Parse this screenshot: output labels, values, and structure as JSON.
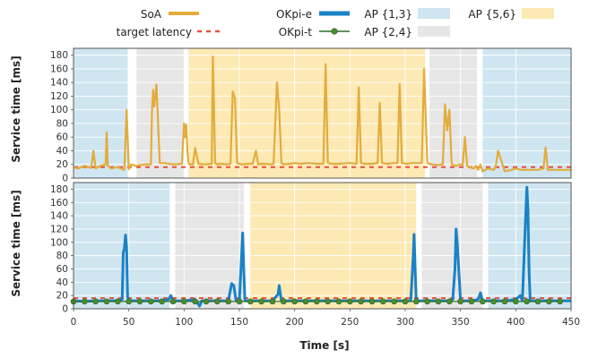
{
  "chart_data": {
    "type": "line",
    "xlabel": "Time [s]",
    "ylabel": "Service time [ms]",
    "xlim": [
      0,
      450
    ],
    "ylim": [
      0,
      190
    ],
    "xticks": [
      0,
      50,
      100,
      150,
      200,
      250,
      300,
      350,
      400,
      450
    ],
    "yticks": [
      0,
      20,
      40,
      60,
      80,
      100,
      120,
      140,
      160,
      180
    ],
    "grid": true,
    "legend_position": "top",
    "target_latency": 16,
    "legend": {
      "soa": "SoA",
      "okpi_e": "OKpi-e",
      "ap13": "AP {1,3}",
      "ap56": "AP {5,6}",
      "target": "target latency",
      "okpi_t": "OKpi-t",
      "ap24": "AP {2,4}"
    },
    "colors": {
      "soa": "#e3ac3c",
      "okpi_e": "#1a82c6",
      "okpi_t": "#2e6b2a",
      "okpi_t_marker": "#4f8a2d",
      "target": "#e8503a",
      "ap13": "#cfe6f1",
      "ap24": "#e6e6e6",
      "ap56": "#fde9b4"
    },
    "panels": [
      {
        "name": "SoA",
        "regions": [
          {
            "ap": "AP {1,3}",
            "from": 0,
            "to": 49
          },
          {
            "ap": "AP {2,4}",
            "from": 57,
            "to": 100
          },
          {
            "ap": "AP {5,6}",
            "from": 104,
            "to": 318
          },
          {
            "ap": "AP {2,4}",
            "from": 322,
            "to": 365
          },
          {
            "ap": "AP {1,3}",
            "from": 370,
            "to": 450
          }
        ],
        "series": [
          {
            "name": "SoA",
            "x": [
              0,
              4,
              10,
              16,
              18,
              20,
              24,
              29,
              30,
              31,
              34,
              40,
              46,
              48,
              50,
              52,
              56,
              60,
              66,
              70,
              71,
              72,
              73,
              74,
              75,
              76,
              78,
              82,
              90,
              98,
              100,
              101,
              102,
              103,
              104,
              105,
              108,
              110,
              113,
              118,
              125,
              126,
              127,
              128,
              130,
              133,
              138,
              142,
              144,
              146,
              148,
              152,
              158,
              162,
              165,
              167,
              170,
              174,
              178,
              181,
              184,
              186,
              188,
              190,
              196,
              200,
              206,
              212,
              220,
              226,
              228,
              230,
              234,
              240,
              250,
              256,
              258,
              260,
              264,
              270,
              275,
              277,
              279,
              284,
              290,
              293,
              295,
              297,
              302,
              306,
              310,
              313,
              315,
              317,
              320,
              324,
              330,
              334,
              336,
              338,
              340,
              342,
              346,
              350,
              352,
              354,
              356,
              358,
              362,
              364,
              366,
              368,
              370,
              375,
              380,
              382,
              384,
              390,
              396,
              400,
              405,
              410,
              420,
              425,
              427,
              429,
              440,
              450
            ],
            "y": [
              16,
              14,
              18,
              15,
              40,
              14,
              18,
              20,
              67,
              18,
              14,
              16,
              12,
              100,
              13,
              20,
              18,
              19,
              20,
              20,
              100,
              129,
              105,
              120,
              137,
              100,
              22,
              22,
              20,
              21,
              80,
              60,
              78,
              40,
              22,
              20,
              20,
              44,
              21,
              20,
              21,
              178,
              110,
              22,
              20,
              21,
              20,
              21,
              127,
              117,
              22,
              20,
              21,
              21,
              40,
              20,
              21,
              21,
              20,
              21,
              140,
              100,
              22,
              20,
              21,
              22,
              21,
              22,
              21,
              21,
              167,
              22,
              21,
              21,
              22,
              21,
              133,
              22,
              21,
              21,
              22,
              110,
              22,
              21,
              22,
              22,
              138,
              22,
              21,
              22,
              22,
              22,
              22,
              160,
              22,
              20,
              19,
              20,
              108,
              70,
              100,
              20,
              18,
              20,
              19,
              60,
              18,
              16,
              14,
              18,
              12,
              20,
              10,
              14,
              12,
              18,
              40,
              10,
              12,
              14,
              12,
              12,
              12,
              14,
              45,
              12,
              12,
              12
            ]
          }
        ],
        "target_series": {
          "name": "target latency",
          "y": 16
        }
      },
      {
        "name": "OKpi",
        "regions": [
          {
            "ap": "AP {1,3}",
            "from": 0,
            "to": 87
          },
          {
            "ap": "AP {2,4}",
            "from": 92,
            "to": 154
          },
          {
            "ap": "AP {5,6}",
            "from": 160,
            "to": 310
          },
          {
            "ap": "AP {2,4}",
            "from": 315,
            "to": 370
          },
          {
            "ap": "AP {1,3}",
            "from": 375,
            "to": 450
          }
        ],
        "series": [
          {
            "name": "OKpi-e",
            "x": [
              0,
              10,
              20,
              30,
              40,
              44,
              45,
              46,
              47,
              48,
              49,
              50,
              52,
              60,
              70,
              80,
              86,
              88,
              90,
              95,
              100,
              110,
              114,
              116,
              120,
              130,
              140,
              143,
              145,
              147,
              150,
              152,
              153,
              154,
              155,
              160,
              170,
              180,
              185,
              186,
              188,
              190,
              200,
              210,
              220,
              230,
              240,
              250,
              260,
              270,
              280,
              290,
              300,
              305,
              307,
              308,
              309,
              310,
              312,
              320,
              330,
              340,
              343,
              345,
              346,
              347,
              350,
              360,
              366,
              368,
              370,
              380,
              390,
              400,
              404,
              406,
              408,
              410,
              411,
              412,
              413,
              414,
              420,
              430,
              440,
              450
            ],
            "y": [
              12,
              11,
              12,
              12,
              12,
              14,
              85,
              90,
              111,
              92,
              18,
              12,
              12,
              12,
              12,
              12,
              14,
              20,
              12,
              12,
              12,
              14,
              4,
              12,
              12,
              12,
              12,
              38,
              35,
              12,
              12,
              80,
              114,
              60,
              12,
              12,
              12,
              12,
              22,
              35,
              12,
              12,
              12,
              12,
              12,
              12,
              12,
              12,
              12,
              12,
              12,
              12,
              12,
              12,
              70,
              112,
              60,
              12,
              12,
              12,
              12,
              12,
              14,
              60,
              120,
              100,
              12,
              12,
              14,
              24,
              12,
              12,
              12,
              14,
              20,
              12,
              100,
              183,
              150,
              60,
              12,
              12,
              12,
              12,
              12,
              12
            ]
          },
          {
            "name": "OKpi-t",
            "x": [
              0,
              10,
              20,
              30,
              40,
              50,
              60,
              70,
              80,
              90,
              100,
              110,
              120,
              130,
              140,
              150,
              160,
              170,
              180,
              190,
              200,
              210,
              220,
              230,
              240,
              250,
              260,
              270,
              280,
              290,
              300,
              310,
              320,
              330,
              340,
              350,
              360,
              370,
              380,
              390,
              400,
              410,
              420,
              430,
              440
            ],
            "y": [
              11,
              11,
              11,
              11,
              11,
              11,
              11,
              11,
              11,
              11,
              11,
              11,
              11,
              11,
              11,
              11,
              11,
              11,
              11,
              11,
              11,
              11,
              11,
              11,
              11,
              11,
              11,
              11,
              11,
              11,
              11,
              11,
              11,
              11,
              11,
              11,
              11,
              11,
              11,
              11,
              11,
              11,
              11,
              11,
              11
            ]
          }
        ],
        "target_series": {
          "name": "target latency",
          "y": 16
        }
      }
    ]
  }
}
